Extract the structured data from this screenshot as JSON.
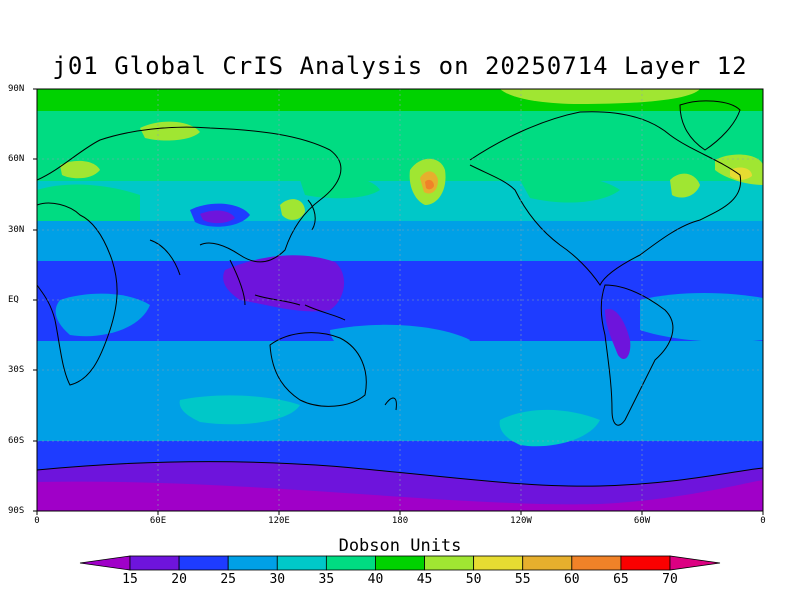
{
  "title": "j01 Global CrIS Analysis on 20250714 Layer 12",
  "colorbar": {
    "title": "Dobson Units",
    "ticks": [
      "15",
      "20",
      "25",
      "30",
      "35",
      "40",
      "45",
      "50",
      "55",
      "60",
      "65",
      "70"
    ],
    "colors": [
      "#a000c8",
      "#6e14dc",
      "#1e3cff",
      "#00a0e6",
      "#00c8c8",
      "#00dc82",
      "#00d200",
      "#a0e632",
      "#e6dc32",
      "#e6af2d",
      "#f08228",
      "#fa0000",
      "#dc0082"
    ]
  },
  "axes": {
    "lat_labels": [
      "90N",
      "60N",
      "30N",
      "EQ",
      "30S",
      "60S",
      "90S"
    ],
    "lon_labels": [
      "0",
      "60E",
      "120E",
      "180",
      "120W",
      "60W",
      "0"
    ]
  },
  "chart_data": {
    "type": "heatmap",
    "title": "j01 Global CrIS Analysis on 20250714 Layer 12",
    "colorbar_label": "Dobson Units",
    "color_levels": [
      15,
      20,
      25,
      30,
      35,
      40,
      45,
      50,
      55,
      60,
      65,
      70
    ],
    "xlim": [
      0,
      360
    ],
    "ylim": [
      -90,
      90
    ],
    "grid": true
  }
}
